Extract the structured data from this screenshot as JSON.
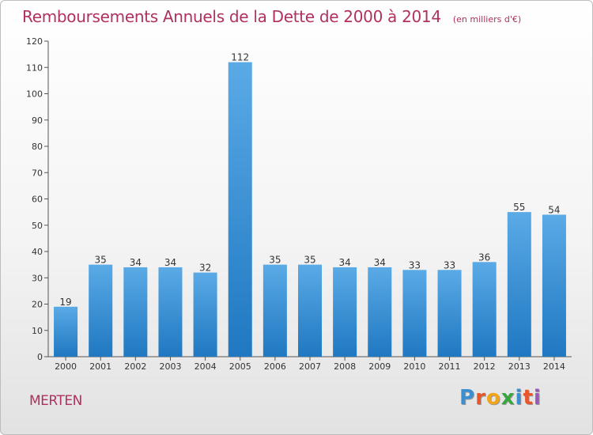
{
  "header": {
    "title": "Remboursements Annuels de la Dette de 2000 à 2014",
    "subtitle": "(en milliers d'€)"
  },
  "footer": {
    "commune": "MERTEN",
    "logo_text": "Proxiti",
    "logo_letters": [
      {
        "char": "P",
        "color": "#3a8fd0"
      },
      {
        "char": "r",
        "color": "#e8562a"
      },
      {
        "char": "o",
        "color": "#f2a51a"
      },
      {
        "char": "x",
        "color": "#3aa640"
      },
      {
        "char": "i",
        "color": "#3a8fd0"
      },
      {
        "char": "t",
        "color": "#e8562a"
      },
      {
        "char": "i",
        "color": "#9b59b6"
      }
    ]
  },
  "colors": {
    "bar_light": "#5aaae6",
    "bar_dark": "#1f78c1",
    "title": "#b03060"
  },
  "chart_data": {
    "type": "bar",
    "title": "Remboursements Annuels de la Dette de 2000 à 2014",
    "subtitle": "(en milliers d'€)",
    "xlabel": "",
    "ylabel": "",
    "categories": [
      "2000",
      "2001",
      "2002",
      "2003",
      "2004",
      "2005",
      "2006",
      "2007",
      "2008",
      "2009",
      "2010",
      "2011",
      "2012",
      "2013",
      "2014"
    ],
    "values": [
      19,
      35,
      34,
      34,
      32,
      112,
      35,
      35,
      34,
      34,
      33,
      33,
      36,
      55,
      54
    ],
    "ylim": [
      0,
      120
    ],
    "yticks": [
      0,
      10,
      20,
      30,
      40,
      50,
      60,
      70,
      80,
      90,
      100,
      110,
      120
    ],
    "grid": false,
    "data_labels": true
  }
}
